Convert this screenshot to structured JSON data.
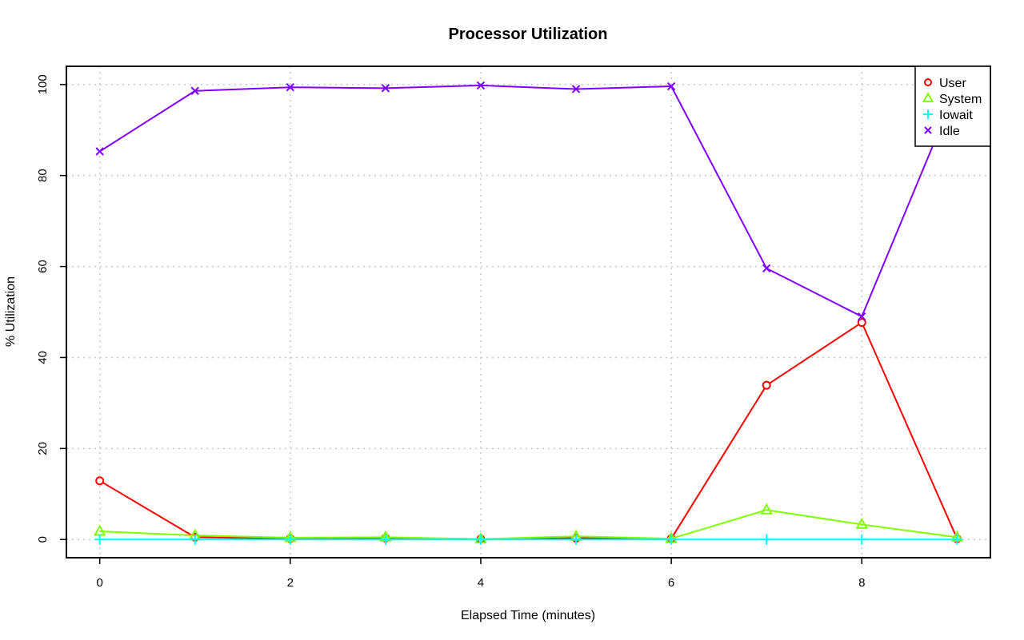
{
  "chart_data": {
    "type": "line",
    "title": "Processor Utilization",
    "xlabel": "Elapsed Time (minutes)",
    "ylabel": "% Utilization",
    "xlim": [
      -0.35,
      9.35
    ],
    "ylim": [
      -4,
      104
    ],
    "x_ticks": [
      0,
      2,
      4,
      6,
      8
    ],
    "y_ticks": [
      0,
      20,
      40,
      60,
      80,
      100
    ],
    "grid": true,
    "legend_position": "top-right",
    "x": [
      0,
      1,
      2,
      3,
      4,
      5,
      6,
      7,
      8,
      9
    ],
    "series": [
      {
        "name": "User",
        "color": "#ff0000",
        "marker": "circle",
        "values": [
          12.9,
          0.5,
          0.2,
          0.3,
          0.1,
          0.3,
          0.2,
          33.9,
          47.7,
          0.2
        ]
      },
      {
        "name": "System",
        "color": "#80ff00",
        "marker": "triangle",
        "values": [
          1.8,
          0.9,
          0.4,
          0.5,
          0.1,
          0.7,
          0.2,
          6.5,
          3.3,
          0.5
        ]
      },
      {
        "name": "Iowait",
        "color": "#00ffff",
        "marker": "plus",
        "values": [
          0.0,
          0.0,
          0.0,
          0.0,
          0.0,
          0.0,
          0.0,
          0.0,
          0.0,
          0.0
        ]
      },
      {
        "name": "Idle",
        "color": "#8000ff",
        "marker": "cross",
        "values": [
          85.3,
          98.6,
          99.4,
          99.2,
          99.8,
          99.0,
          99.6,
          59.6,
          49.0,
          99.3
        ]
      }
    ]
  }
}
